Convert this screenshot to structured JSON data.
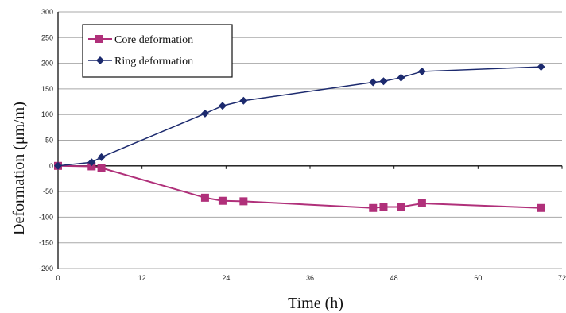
{
  "chart_data": {
    "type": "line",
    "title": "",
    "xlabel": "Time (h)",
    "ylabel": "Deformation (μm/m)",
    "xlim": [
      0,
      72
    ],
    "ylim": [
      -200,
      300
    ],
    "xticks": [
      0,
      12,
      24,
      36,
      48,
      60,
      72
    ],
    "yticks": [
      -200,
      -150,
      -100,
      -50,
      0,
      50,
      100,
      150,
      200,
      250,
      300
    ],
    "xtick_labels": [
      "0",
      "12",
      "24",
      "36",
      "48",
      "60",
      "72"
    ],
    "ytick_labels": [
      "-200",
      "-150",
      "-100",
      "-50",
      "0",
      "50",
      "100",
      "150",
      "200",
      "250",
      "300"
    ],
    "grid": "horizontal",
    "legend_position": "top-left",
    "series": [
      {
        "name": "Core deformation",
        "color": "#b0307a",
        "marker": "square",
        "x": [
          0,
          4.8,
          6.2,
          21,
          23.5,
          26.5,
          45,
          46.5,
          49,
          52,
          69
        ],
        "y": [
          0,
          -1,
          -4,
          -62,
          -68,
          -69,
          -82,
          -80,
          -80,
          -73,
          -82
        ]
      },
      {
        "name": "Ring deformation",
        "color": "#1c2a6e",
        "marker": "diamond",
        "x": [
          0,
          4.8,
          6.2,
          21,
          23.5,
          26.5,
          45,
          46.5,
          49,
          52,
          69
        ],
        "y": [
          0,
          7,
          17,
          102,
          117,
          127,
          163,
          165,
          172,
          184,
          193
        ]
      }
    ]
  }
}
